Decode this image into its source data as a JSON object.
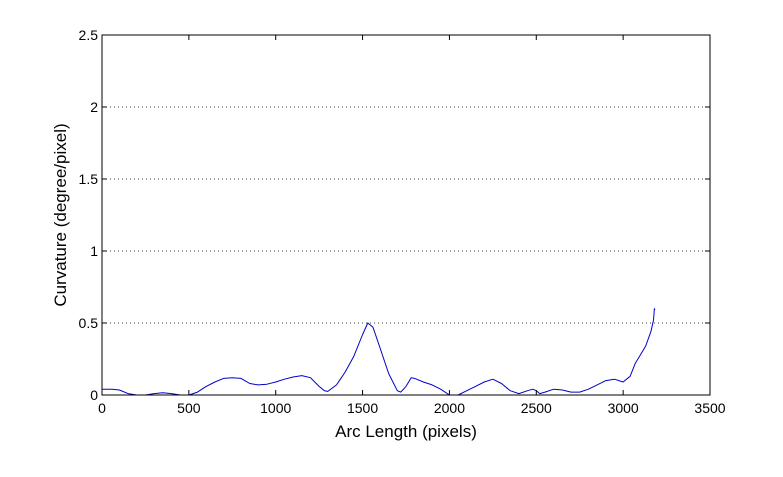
{
  "chart_data": {
    "type": "line",
    "title": "",
    "xlabel": "Arc Length (pixels)",
    "ylabel": "Curvature (degree/pixel)",
    "xlim": [
      0,
      3500
    ],
    "ylim": [
      0,
      2.5
    ],
    "xticks": [
      "0",
      "500",
      "1000",
      "1500",
      "2000",
      "2500",
      "3000",
      "3500"
    ],
    "yticks": [
      "0",
      "0.5",
      "1",
      "1.5",
      "2",
      "2.5"
    ],
    "grid": "horizontal dotted at y ticks",
    "legend": "none",
    "series": [
      {
        "color": "#0000cc",
        "x": [
          0,
          60,
          100,
          150,
          200,
          250,
          300,
          350,
          400,
          450,
          500,
          550,
          600,
          650,
          700,
          750,
          800,
          850,
          900,
          950,
          1000,
          1050,
          1100,
          1150,
          1200,
          1250,
          1280,
          1300,
          1350,
          1400,
          1450,
          1500,
          1530,
          1560,
          1600,
          1650,
          1700,
          1720,
          1750,
          1780,
          1800,
          1850,
          1900,
          1950,
          2000,
          2050,
          2100,
          2150,
          2200,
          2250,
          2300,
          2350,
          2400,
          2450,
          2480,
          2500,
          2520,
          2550,
          2600,
          2650,
          2700,
          2750,
          2800,
          2850,
          2900,
          2950,
          3000,
          3040,
          3070,
          3100,
          3130,
          3160,
          3175,
          3180,
          3182
        ],
        "y": [
          0.04,
          0.04,
          0.035,
          0.01,
          0.0,
          0.0,
          0.01,
          0.015,
          0.01,
          0.0,
          0.0,
          0.02,
          0.06,
          0.09,
          0.115,
          0.12,
          0.115,
          0.08,
          0.07,
          0.075,
          0.09,
          0.11,
          0.125,
          0.135,
          0.12,
          0.06,
          0.03,
          0.025,
          0.07,
          0.16,
          0.27,
          0.42,
          0.5,
          0.47,
          0.33,
          0.15,
          0.03,
          0.02,
          0.06,
          0.12,
          0.115,
          0.09,
          0.07,
          0.04,
          0.0,
          0.0,
          0.03,
          0.06,
          0.09,
          0.11,
          0.08,
          0.03,
          0.01,
          0.03,
          0.04,
          0.03,
          0.01,
          0.02,
          0.04,
          0.035,
          0.02,
          0.02,
          0.04,
          0.07,
          0.1,
          0.11,
          0.09,
          0.13,
          0.22,
          0.28,
          0.34,
          0.44,
          0.52,
          0.6,
          0.59
        ]
      }
    ]
  }
}
